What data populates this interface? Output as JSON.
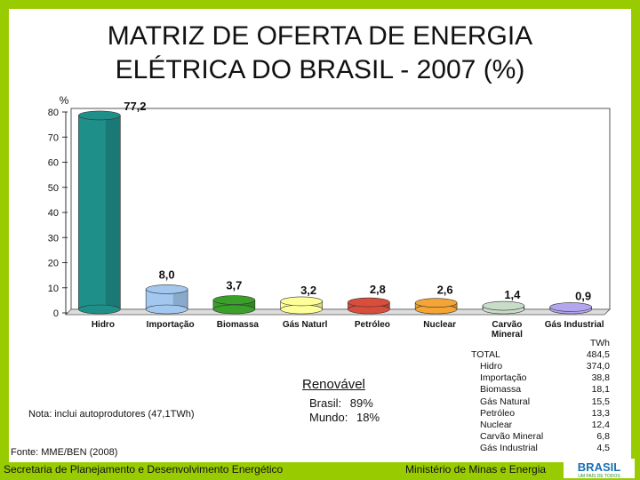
{
  "title_line1": "MATRIZ DE OFERTA DE ENERGIA",
  "title_line2": "ELÉTRICA DO BRASIL - 2007 (%)",
  "chart_data": {
    "type": "bar",
    "ylabel": "%",
    "ylim": [
      0,
      80
    ],
    "yticks": [
      0,
      10,
      20,
      30,
      40,
      50,
      60,
      70,
      80
    ],
    "ytick_labels": [
      "0",
      "10",
      "20",
      "30",
      "40",
      "50",
      "60",
      "70",
      "80"
    ],
    "categories": [
      "Hidro",
      "Importação",
      "Biomassa",
      "Gás Natural",
      "Petróleo",
      "Nuclear",
      "Carvão Mineral",
      "Gás Industrial"
    ],
    "category_display": [
      "Hidro",
      "Importação",
      "Biomassa",
      "Gás Naturl",
      "Petróleo",
      "Nuclear",
      "Carvão Mineral",
      "Gás Industrial"
    ],
    "values": [
      77.2,
      8.0,
      3.7,
      3.2,
      2.8,
      2.6,
      1.4,
      0.9
    ],
    "value_labels": [
      "77,2",
      "8,0",
      "3,7",
      "3,2",
      "2,8",
      "2,6",
      "1,4",
      "0,9"
    ],
    "bar_colors": [
      "#1f8f8a",
      "#a3c8ef",
      "#3aa02a",
      "#ffff99",
      "#d94d3b",
      "#f4a535",
      "#c8dcc8",
      "#b3a5ee"
    ],
    "grid": false
  },
  "note_label": "Nota:",
  "note_text": "inclui autoprodutores (47,1TWh)",
  "source_text": "Fonte: MME/BEN (2008)",
  "renovavel": {
    "title": "Renovável",
    "rows": [
      {
        "label": "Brasil:",
        "value": "89%"
      },
      {
        "label": "Mundo:",
        "value": "18%"
      }
    ]
  },
  "twh_table": {
    "unit": "TWh",
    "total_label": "TOTAL",
    "total_value": "484,5",
    "rows": [
      {
        "label": "Hidro",
        "value": "374,0"
      },
      {
        "label": "Importação",
        "value": "38,8"
      },
      {
        "label": "Biomassa",
        "value": "18,1"
      },
      {
        "label": "Gás Natural",
        "value": "15,5"
      },
      {
        "label": "Petróleo",
        "value": "13,3"
      },
      {
        "label": "Nuclear",
        "value": "12,4"
      },
      {
        "label": "Carvão Mineral",
        "value": "6,8"
      },
      {
        "label": "Gás Industrial",
        "value": "4,5"
      }
    ]
  },
  "footer_left": "Secretaria de Planejamento e Desenvolvimento Energético",
  "footer_right": "Ministério de Minas e Energia",
  "logo_text": "BRASIL",
  "logo_tagline": "UM PAÍS DE TODOS",
  "colors": {
    "frame_green": "#99cc00",
    "text": "#111111"
  }
}
